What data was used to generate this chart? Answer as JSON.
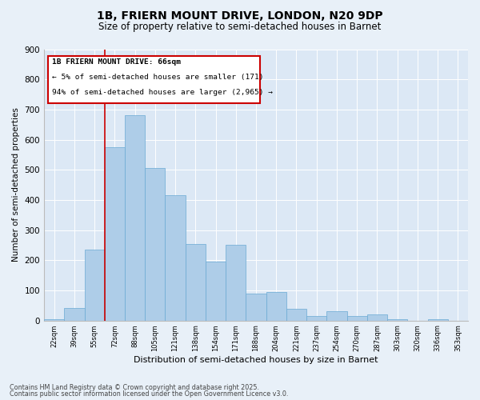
{
  "title_line1": "1B, FRIERN MOUNT DRIVE, LONDON, N20 9DP",
  "title_line2": "Size of property relative to semi-detached houses in Barnet",
  "xlabel": "Distribution of semi-detached houses by size in Barnet",
  "ylabel": "Number of semi-detached properties",
  "categories": [
    "22sqm",
    "39sqm",
    "55sqm",
    "72sqm",
    "88sqm",
    "105sqm",
    "121sqm",
    "138sqm",
    "154sqm",
    "171sqm",
    "188sqm",
    "204sqm",
    "221sqm",
    "237sqm",
    "254sqm",
    "270sqm",
    "287sqm",
    "303sqm",
    "320sqm",
    "336sqm",
    "353sqm"
  ],
  "bar_heights": [
    5,
    42,
    235,
    575,
    680,
    505,
    415,
    255,
    195,
    250,
    90,
    95,
    40,
    15,
    30,
    15,
    20,
    3,
    0,
    3,
    0
  ],
  "bar_color": "#aecde8",
  "bar_edge_color": "#6aaad4",
  "vline_color": "#cc0000",
  "vline_x": 2.5,
  "annotation_title": "1B FRIERN MOUNT DRIVE: 66sqm",
  "annotation_line1": "← 5% of semi-detached houses are smaller (171)",
  "annotation_line2": "94% of semi-detached houses are larger (2,965) →",
  "annotation_box_color": "#cc0000",
  "ylim": [
    0,
    900
  ],
  "yticks": [
    0,
    100,
    200,
    300,
    400,
    500,
    600,
    700,
    800,
    900
  ],
  "footnote1": "Contains HM Land Registry data © Crown copyright and database right 2025.",
  "footnote2": "Contains public sector information licensed under the Open Government Licence v3.0.",
  "bg_color": "#e8f0f8",
  "plot_bg_color": "#dce8f5"
}
